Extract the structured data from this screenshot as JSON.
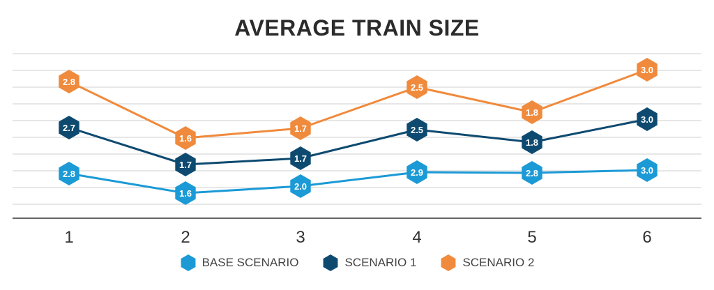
{
  "chart_data": {
    "type": "line",
    "title": "AVERAGE TRAIN SIZE",
    "categories": [
      "1",
      "2",
      "3",
      "4",
      "5",
      "6"
    ],
    "series": [
      {
        "name": "BASE SCENARIO",
        "color": "#1b9ad6",
        "values": [
          2.8,
          1.6,
          2.0,
          2.9,
          2.8,
          3.0
        ]
      },
      {
        "name": "SCENARIO 1",
        "color": "#0e4a70",
        "values": [
          2.7,
          1.7,
          1.7,
          2.5,
          1.8,
          3.0
        ]
      },
      {
        "name": "SCENARIO 2",
        "color": "#f08a3c",
        "values": [
          2.8,
          1.6,
          1.7,
          2.5,
          1.8,
          3.0
        ]
      }
    ],
    "xlabel": "",
    "ylabel": "",
    "grid": true,
    "legend": "bottom"
  }
}
